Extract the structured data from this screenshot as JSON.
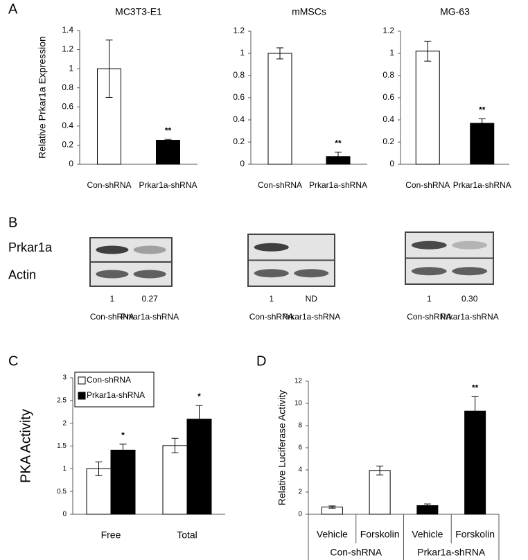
{
  "panel_labels": [
    "A",
    "B",
    "C",
    "D"
  ],
  "chart_data": [
    {
      "type": "bar",
      "title": "MC3T3-E1",
      "y_label": "Relative Prkar1a Expression",
      "categories": [
        "Con-shRNA",
        "Prkar1a-shRNA"
      ],
      "values": [
        1,
        0.25
      ],
      "errors": [
        0.3,
        0.01
      ],
      "colors": [
        "#ffffff",
        "#000000"
      ],
      "annotations": [
        null,
        "**"
      ],
      "ylim": [
        0,
        1.4
      ],
      "yticks": [
        0,
        0.2,
        0.4,
        0.6,
        0.8,
        1,
        1.2,
        1.4
      ]
    },
    {
      "type": "bar",
      "title": "mMSCs",
      "categories": [
        "Con-shRNA",
        "Prkar1a-shRNA"
      ],
      "values": [
        1,
        0.07
      ],
      "errors": [
        0.05,
        0.04
      ],
      "colors": [
        "#ffffff",
        "#000000"
      ],
      "annotations": [
        null,
        "**"
      ],
      "ylim": [
        0,
        1.2
      ],
      "yticks": [
        0,
        0.2,
        0.4,
        0.6,
        0.8,
        1,
        1.2
      ]
    },
    {
      "type": "bar",
      "title": "MG-63",
      "categories": [
        "Con-shRNA",
        "Prkar1a-shRNA"
      ],
      "values": [
        1.02,
        0.37
      ],
      "errors": [
        0.09,
        0.04
      ],
      "colors": [
        "#ffffff",
        "#000000"
      ],
      "annotations": [
        null,
        "**"
      ],
      "ylim": [
        0,
        1.2
      ],
      "yticks": [
        0,
        0.2,
        0.4,
        0.6,
        0.8,
        1,
        1.2
      ]
    },
    {
      "type": "grouped-bar",
      "y_label": "PKA Activity",
      "categories": [
        "Free",
        "Total"
      ],
      "series": [
        {
          "name": "Con-shRNA",
          "color": "#ffffff",
          "values": [
            1,
            1.51
          ],
          "errors": [
            0.15,
            0.16
          ]
        },
        {
          "name": "Prkar1a-shRNA",
          "color": "#000000",
          "values": [
            1.41,
            2.09
          ],
          "errors": [
            0.13,
            0.3
          ],
          "annotations": [
            "*",
            "*"
          ]
        }
      ],
      "ylim": [
        0,
        3
      ],
      "yticks": [
        0,
        0.5,
        1,
        1.5,
        2,
        2.5,
        3
      ],
      "legend": "top-left"
    },
    {
      "type": "bar",
      "y_label": "Relative Luciferase Activity",
      "categories": [
        "Vehicle",
        "Forskolin",
        "Vehicle",
        "Forskolin"
      ],
      "groups": [
        "Con-shRNA",
        "Prkar1a-shRNA"
      ],
      "values": [
        0.65,
        3.95,
        0.78,
        9.3
      ],
      "errors": [
        0.1,
        0.4,
        0.15,
        1.3
      ],
      "colors": [
        "#ffffff",
        "#ffffff",
        "#000000",
        "#000000"
      ],
      "annotations": [
        null,
        null,
        null,
        "**"
      ],
      "ylim": [
        0,
        12
      ],
      "yticks": [
        0,
        2,
        4,
        6,
        8,
        10,
        12
      ]
    }
  ],
  "blots": [
    {
      "row_labels": [
        "Prkar1a",
        "Actin"
      ],
      "quantification": [
        "1",
        "0.27"
      ],
      "lanes": [
        "Con-shRNA",
        "Prkar1a-shRNA"
      ]
    },
    {
      "quantification": [
        "1",
        "ND"
      ],
      "lanes": [
        "Con-shRNA",
        "Prkar1a-shRNA"
      ]
    },
    {
      "quantification": [
        "1",
        "0.30"
      ],
      "lanes": [
        "Con-shRNA",
        "Prkar1a-shRNA"
      ]
    }
  ]
}
